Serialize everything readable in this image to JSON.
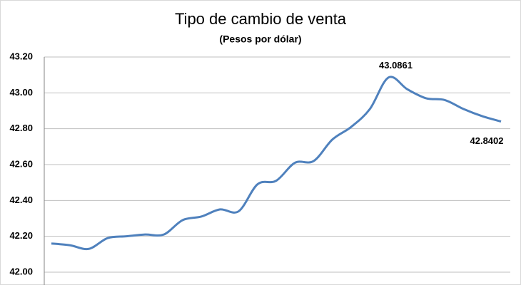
{
  "chart_data": {
    "type": "line",
    "title": "Tipo de cambio de venta",
    "subtitle": "(Pesos por dólar)",
    "categories": [
      null,
      null,
      null,
      null,
      null,
      null,
      null,
      null,
      null,
      null,
      null,
      null,
      null,
      null,
      null,
      null,
      null,
      null,
      null,
      null,
      null,
      null,
      null,
      null,
      null
    ],
    "series": [
      {
        "color": "#4f81bd",
        "values": [
          42.16,
          42.15,
          42.13,
          42.19,
          42.2,
          42.21,
          42.21,
          42.29,
          42.31,
          42.35,
          42.34,
          42.49,
          42.51,
          42.61,
          42.62,
          42.74,
          42.81,
          42.91,
          43.0861,
          43.02,
          42.97,
          42.96,
          42.91,
          42.87,
          42.8402
        ],
        "value_labels": [
          null,
          null,
          null,
          null,
          null,
          null,
          null,
          null,
          null,
          null,
          null,
          null,
          null,
          null,
          null,
          null,
          null,
          null,
          "43.0861",
          null,
          null,
          null,
          null,
          null,
          "42.8402"
        ]
      }
    ],
    "ylim": [
      42,
      43.2
    ],
    "yticks": [
      {
        "value": 42,
        "label": "42.00"
      },
      {
        "value": 42.2,
        "label": "42.20"
      },
      {
        "value": 42.4,
        "label": "42.40"
      },
      {
        "value": 42.6,
        "label": "42.60"
      },
      {
        "value": 42.8,
        "label": "42.80"
      },
      {
        "value": 43,
        "label": "43.00"
      },
      {
        "value": 43.2,
        "label": "43.20"
      }
    ],
    "grid": true
  }
}
